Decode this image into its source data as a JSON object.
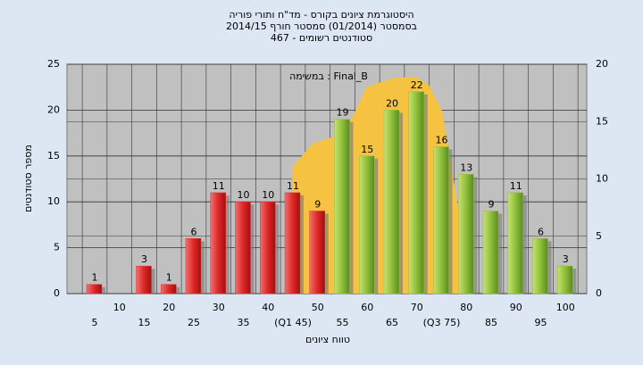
{
  "chart_data": {
    "type": "bar",
    "title": "היסטוגרמת ציונים בקורס - מד\"ח ותורי פוריה",
    "subtitle": "בסמסטר  (01/2014)  סמסטר חורף  2014/15",
    "subtitle2": "סטודנטים רשומים - 467",
    "annotation": "במשימה : Final_B",
    "y_label": "מספר סטודנטים",
    "x_label": "טווח ציונים",
    "categories": [
      "5",
      "10",
      "15",
      "20",
      "25",
      "30",
      "35",
      "40",
      "(Q1 45)",
      "50",
      "55",
      "60",
      "65",
      "70",
      "(Q3 75)",
      "80",
      "85",
      "90",
      "95",
      "100"
    ],
    "values": [
      1,
      null,
      3,
      1,
      6,
      11,
      10,
      10,
      11,
      9,
      19,
      15,
      20,
      22,
      16,
      13,
      9,
      11,
      6,
      3
    ],
    "colors": [
      "#e03030",
      "#e03030",
      "#e03030",
      "#e03030",
      "#e03030",
      "#e03030",
      "#e03030",
      "#e03030",
      "#e03030",
      "#e03030",
      "#8fc03a",
      "#8fc03a",
      "#8fc03a",
      "#8fc03a",
      "#8fc03a",
      "#8fc03a",
      "#8fc03a",
      "#8fc03a",
      "#8fc03a",
      "#8fc03a"
    ],
    "ylim": [
      0,
      25
    ],
    "yticks": [
      0,
      5,
      10,
      15,
      20,
      25
    ],
    "y2lim": [
      0,
      20
    ],
    "y2ticks": [
      0,
      5,
      10,
      15,
      20
    ],
    "area": {
      "color": "#f5c242",
      "axis": "y2",
      "x": [
        44.8,
        49,
        54.9,
        57.1,
        59.8,
        65.2,
        69.7,
        72.4,
        75.1,
        78.7
      ],
      "values": [
        11,
        13.1,
        13.9,
        15.5,
        18,
        18.8,
        18.9,
        18.2,
        15.9,
        6.5
      ]
    },
    "grid": true
  }
}
